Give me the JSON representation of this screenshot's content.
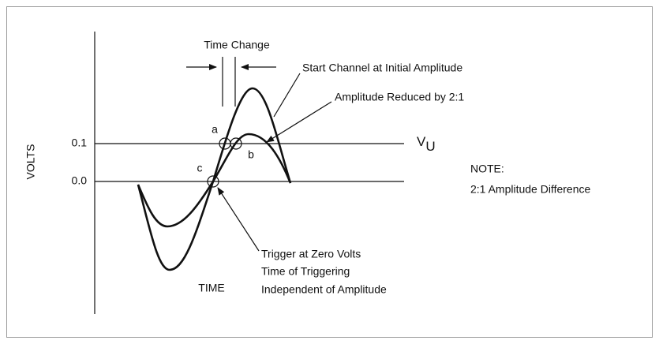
{
  "labels": {
    "time_change": "Time Change",
    "start_channel": "Start Channel at Initial Amplitude",
    "amplitude_reduced": "Amplitude Reduced by 2:1",
    "v": "V",
    "v_subscript": "U",
    "note_title": "NOTE:",
    "note_text": "2:1 Amplitude Difference",
    "y_axis": "VOLTS",
    "tick_high": "0.1",
    "tick_zero": "0.0",
    "point_a": "a",
    "point_b": "b",
    "point_c": "c",
    "x_axis": "TIME",
    "trigger_lines": [
      "Trigger at Zero Volts",
      "Time of Triggering",
      "Independent of Amplitude"
    ]
  }
}
